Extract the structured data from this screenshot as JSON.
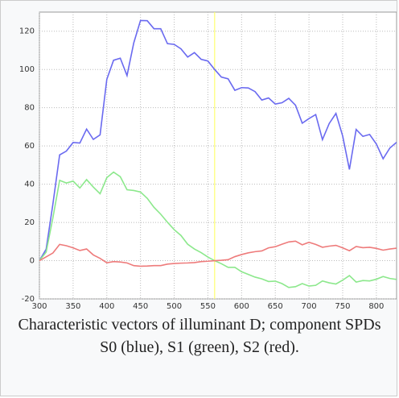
{
  "chart_data": {
    "type": "line",
    "caption": "Characteristic vectors of illuminant D; component SPDs S0 (blue), S1 (green), S2 (red).",
    "x": [
      300,
      310,
      320,
      330,
      340,
      350,
      360,
      370,
      380,
      390,
      400,
      410,
      420,
      430,
      440,
      450,
      460,
      470,
      480,
      490,
      500,
      510,
      520,
      530,
      540,
      550,
      560,
      570,
      580,
      590,
      600,
      610,
      620,
      630,
      640,
      650,
      660,
      670,
      680,
      690,
      700,
      710,
      720,
      730,
      740,
      750,
      760,
      770,
      780,
      790,
      800,
      810,
      820,
      830
    ],
    "series": [
      {
        "color": "#6a6af0",
        "values": [
          0.04,
          6,
          29.6,
          55.3,
          57.3,
          61.8,
          61.5,
          68.8,
          63.4,
          65.8,
          94.8,
          104.8,
          105.9,
          96.8,
          113.9,
          125.6,
          125.5,
          121.3,
          121.3,
          113.5,
          113.1,
          110.8,
          106.5,
          108.8,
          105.3,
          104.4,
          100,
          96,
          95.1,
          89.1,
          90.5,
          90.3,
          88.4,
          84,
          85.1,
          81.9,
          82.6,
          84.9,
          81.3,
          71.9,
          74.3,
          76.4,
          63.3,
          71.7,
          77,
          65.2,
          47.7,
          68.6,
          65,
          66,
          61,
          53.3,
          58.9,
          61.9
        ]
      },
      {
        "color": "#8ce88c",
        "values": [
          0.02,
          4.5,
          22.4,
          42,
          40.6,
          41.6,
          38,
          42.4,
          38.5,
          35,
          43.4,
          46.3,
          43.9,
          37.1,
          36.7,
          35.9,
          32.6,
          27.9,
          24.3,
          20.1,
          16.2,
          13.2,
          8.6,
          6.1,
          4.2,
          1.9,
          0,
          -1.6,
          -3.5,
          -3.5,
          -5.8,
          -7.2,
          -8.6,
          -9.5,
          -10.9,
          -10.7,
          -12,
          -14,
          -13.6,
          -12,
          -13.3,
          -12.9,
          -10.6,
          -11.6,
          -12.2,
          -10.2,
          -7.8,
          -11.2,
          -10.4,
          -10.6,
          -9.7,
          -8.3,
          -9.3,
          -9.8
        ]
      },
      {
        "color": "#ee7b7b",
        "values": [
          0,
          2,
          4,
          8.5,
          7.8,
          6.7,
          5.3,
          6.1,
          3,
          1.2,
          -1.1,
          -0.5,
          -0.7,
          -1.2,
          -2.6,
          -2.9,
          -2.8,
          -2.6,
          -2.6,
          -1.8,
          -1.5,
          -1.3,
          -1.2,
          -1,
          -0.5,
          -0.3,
          0,
          0.2,
          0.5,
          2.1,
          3.2,
          4.1,
          4.7,
          5.1,
          6.7,
          7.3,
          8.6,
          9.8,
          10.2,
          8.3,
          9.6,
          8.5,
          7,
          7.6,
          8,
          6.7,
          5.2,
          7.4,
          6.8,
          7,
          6.4,
          5.5,
          6.1,
          6.5
        ]
      }
    ],
    "vline": {
      "x": 560,
      "color": "#ffff70"
    },
    "xlim": [
      300,
      830
    ],
    "xticks": [
      300,
      350,
      400,
      450,
      500,
      550,
      600,
      650,
      700,
      750,
      800
    ],
    "ylim": [
      -20,
      130
    ],
    "yticks": [
      -20,
      0,
      20,
      40,
      60,
      80,
      100,
      120
    ],
    "grid": true
  }
}
